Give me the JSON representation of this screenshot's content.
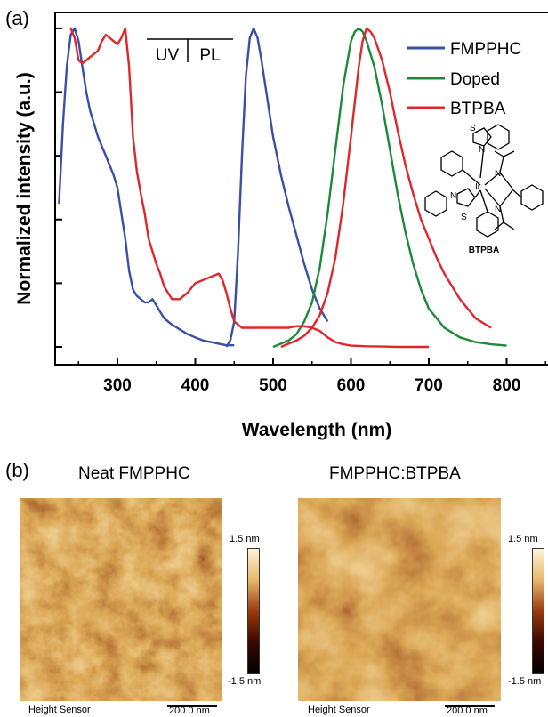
{
  "panel_a": {
    "tag": "(a)"
  },
  "panel_b": {
    "tag": "(b)"
  },
  "chart_data": {
    "type": "line",
    "title": "",
    "xlabel": "Wavelength (nm)",
    "ylabel": "Normalized intensity (a.u.)",
    "xlim": [
      220,
      860
    ],
    "ylim": [
      0,
      1.05
    ],
    "x_ticks": [
      300,
      400,
      500,
      600,
      700,
      800
    ],
    "grid": false,
    "legend_position": "top-right",
    "annotation": {
      "left": "UV",
      "right": "PL"
    },
    "structure_label": "BTPBA",
    "colors": {
      "FMPPHC": "#3a4fa6",
      "Doped": "#1b8a3a",
      "BTPBA": "#e0262b"
    },
    "series": [
      {
        "name": "FMPPHC",
        "x": [
          225,
          230,
          235,
          240,
          245,
          250,
          255,
          260,
          265,
          270,
          275,
          280,
          285,
          290,
          295,
          300,
          305,
          310,
          315,
          320,
          325,
          330,
          335,
          340,
          345,
          350,
          355,
          360,
          365,
          370,
          380,
          390,
          400,
          410,
          420,
          430,
          440,
          450
        ],
        "y": [
          0.45,
          0.7,
          0.88,
          0.98,
          1.0,
          0.96,
          0.88,
          0.8,
          0.74,
          0.7,
          0.66,
          0.63,
          0.6,
          0.57,
          0.54,
          0.5,
          0.42,
          0.34,
          0.24,
          0.18,
          0.16,
          0.15,
          0.14,
          0.14,
          0.15,
          0.13,
          0.11,
          0.09,
          0.08,
          0.07,
          0.055,
          0.04,
          0.03,
          0.02,
          0.015,
          0.01,
          0.005,
          0.005
        ]
      },
      {
        "name": "FMPPHC",
        "x": [
          440,
          445,
          450,
          455,
          460,
          465,
          470,
          475,
          480,
          485,
          490,
          495,
          500,
          510,
          520,
          530,
          540,
          550,
          560,
          570
        ],
        "y": [
          0.0,
          0.02,
          0.08,
          0.3,
          0.6,
          0.85,
          0.97,
          1.0,
          0.97,
          0.9,
          0.82,
          0.74,
          0.66,
          0.54,
          0.44,
          0.35,
          0.26,
          0.18,
          0.12,
          0.08
        ]
      },
      {
        "name": "Doped",
        "x": [
          500,
          510,
          520,
          530,
          540,
          550,
          560,
          570,
          580,
          590,
          600,
          605,
          610,
          615,
          620,
          630,
          640,
          650,
          660,
          670,
          680,
          690,
          700,
          720,
          740,
          760,
          780,
          800
        ],
        "y": [
          0.0,
          0.01,
          0.02,
          0.04,
          0.08,
          0.14,
          0.25,
          0.42,
          0.62,
          0.82,
          0.96,
          0.99,
          1.0,
          0.99,
          0.96,
          0.88,
          0.76,
          0.62,
          0.48,
          0.36,
          0.26,
          0.18,
          0.12,
          0.06,
          0.03,
          0.015,
          0.008,
          0.004
        ]
      },
      {
        "name": "BTPBA",
        "x": [
          240,
          245,
          250,
          255,
          260,
          265,
          270,
          275,
          280,
          285,
          290,
          295,
          300,
          305,
          310,
          315,
          320,
          325,
          330,
          335,
          340,
          345,
          350,
          355,
          360,
          365,
          370,
          380,
          390,
          400,
          410,
          420,
          430,
          435,
          440,
          445,
          450,
          460,
          470,
          480,
          490,
          500,
          510,
          520,
          530,
          540,
          550,
          560,
          570,
          580,
          590,
          600,
          620,
          640,
          660,
          680,
          700
        ],
        "y": [
          1.0,
          0.97,
          0.9,
          0.89,
          0.9,
          0.91,
          0.92,
          0.93,
          0.96,
          0.98,
          0.97,
          0.96,
          0.95,
          0.97,
          1.0,
          0.88,
          0.66,
          0.55,
          0.48,
          0.42,
          0.34,
          0.3,
          0.26,
          0.23,
          0.19,
          0.17,
          0.15,
          0.15,
          0.17,
          0.2,
          0.21,
          0.22,
          0.23,
          0.21,
          0.17,
          0.12,
          0.08,
          0.06,
          0.06,
          0.06,
          0.06,
          0.06,
          0.06,
          0.06,
          0.065,
          0.065,
          0.06,
          0.05,
          0.03,
          0.015,
          0.008,
          0.004,
          0.002,
          0.001,
          0.0,
          0.0,
          0.0
        ]
      },
      {
        "name": "BTPBA",
        "x": [
          510,
          520,
          530,
          540,
          550,
          560,
          570,
          580,
          590,
          600,
          610,
          615,
          620,
          625,
          630,
          640,
          650,
          660,
          670,
          680,
          690,
          700,
          710,
          720,
          740,
          760,
          780
        ],
        "y": [
          0.0,
          0.01,
          0.02,
          0.035,
          0.06,
          0.1,
          0.17,
          0.28,
          0.45,
          0.66,
          0.88,
          0.96,
          1.0,
          0.99,
          0.97,
          0.9,
          0.8,
          0.68,
          0.57,
          0.48,
          0.4,
          0.34,
          0.28,
          0.23,
          0.15,
          0.09,
          0.06
        ]
      }
    ]
  },
  "afm": [
    {
      "title": "Neat FMPPHC",
      "scale_max": "1.5 nm",
      "scale_min": "-1.5 nm",
      "footer": "Height Sensor",
      "scale_bar": "200.0 nm"
    },
    {
      "title": "FMPPHC:BTPBA",
      "scale_max": "1.5 nm",
      "scale_min": "-1.5 nm",
      "footer": "Height Sensor",
      "scale_bar": "200.0 nm"
    }
  ]
}
